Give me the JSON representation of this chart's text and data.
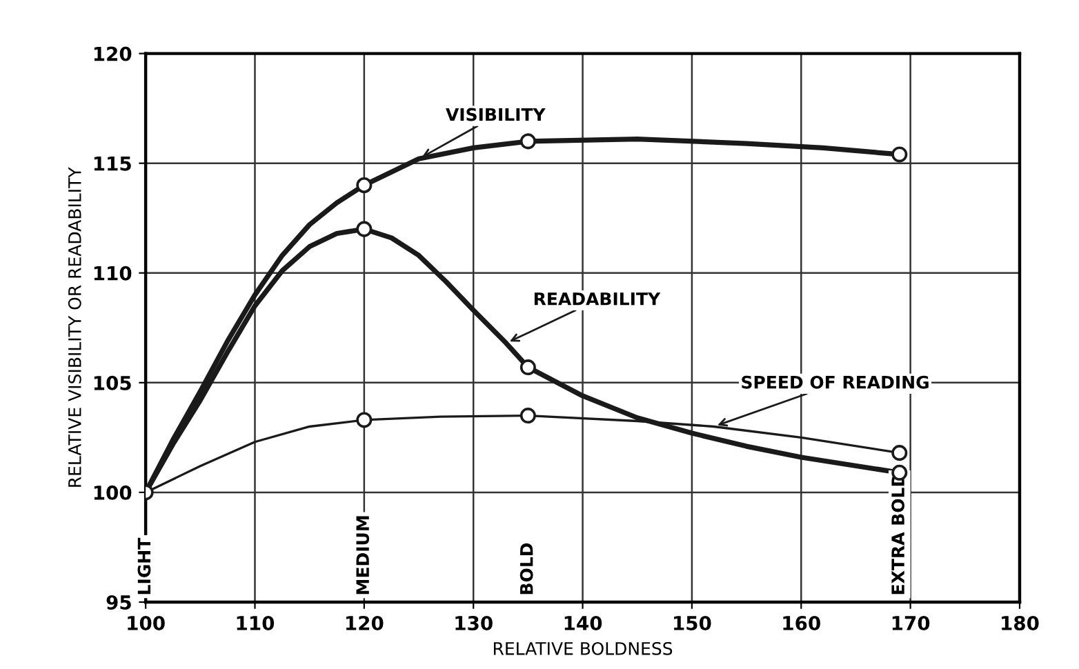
{
  "chart_data": {
    "type": "line",
    "xlabel": "RELATIVE BOLDNESS",
    "ylabel": "RELATIVE VISIBILITY OR READABILITY",
    "xlim": [
      100,
      180
    ],
    "xticks": [
      100,
      110,
      120,
      130,
      140,
      150,
      160,
      170,
      180
    ],
    "ylim": [
      95,
      120
    ],
    "yticks": [
      95,
      100,
      105,
      110,
      115,
      120
    ],
    "grid": true,
    "marker": "circle",
    "line_style": "solid",
    "series": [
      {
        "color": "#1a1a1a",
        "marker": "none",
        "x": [
          100,
          102.5,
          105,
          107.5,
          110,
          112.5,
          115,
          117.5,
          120,
          125,
          130,
          135,
          145,
          155,
          162,
          169
        ],
        "values": [
          100,
          102.4,
          104.6,
          106.9,
          109.0,
          110.8,
          112.2,
          113.2,
          114.0,
          115.2,
          115.7,
          116.0,
          116.1,
          115.9,
          115.7,
          115.4
        ]
      },
      {
        "color": "#1a1a1a",
        "marker": "none",
        "x": [
          100,
          102.5,
          105,
          107.5,
          110,
          112.5,
          115,
          117.5,
          120,
          122.5,
          125,
          127.5,
          130,
          133,
          135,
          140,
          145,
          150,
          155,
          160,
          169
        ],
        "values": [
          100,
          102.2,
          104.2,
          106.4,
          108.5,
          110.1,
          111.2,
          111.8,
          112.0,
          111.6,
          110.8,
          109.6,
          108.3,
          106.8,
          105.7,
          104.4,
          103.4,
          102.7,
          102.1,
          101.6,
          100.9
        ]
      },
      {
        "color": "#1a1a1a",
        "marker": "none",
        "x": [
          100,
          105,
          110,
          115,
          120,
          127,
          135,
          145,
          152,
          160,
          169
        ],
        "values": [
          100,
          101.2,
          102.3,
          103.0,
          103.3,
          103.45,
          103.5,
          103.25,
          103.0,
          102.5,
          101.8
        ]
      },
      {
        "type": "scatter",
        "color": "#1a1a1a",
        "x": [
          100,
          120,
          135,
          169
        ],
        "values": [
          100,
          114.0,
          116.0,
          115.4
        ]
      },
      {
        "type": "scatter",
        "color": "#1a1a1a",
        "x": [
          120,
          135,
          169
        ],
        "values": [
          112.0,
          105.7,
          100.9
        ]
      },
      {
        "type": "scatter",
        "color": "#1a1a1a",
        "x": [
          120,
          135,
          169
        ],
        "values": [
          103.3,
          103.5,
          101.8
        ]
      }
    ],
    "annotations": [
      {
        "text": "VISIBILITY",
        "x": 125,
        "y": 115.2
      },
      {
        "text": "READABILITY",
        "x": 133,
        "y": 106.8
      },
      {
        "text": "SPEED OF READING",
        "x": 152,
        "y": 103.0
      },
      "LIGHT",
      "MEDIUM",
      "BOLD",
      "EXTRA BOLD"
    ]
  }
}
